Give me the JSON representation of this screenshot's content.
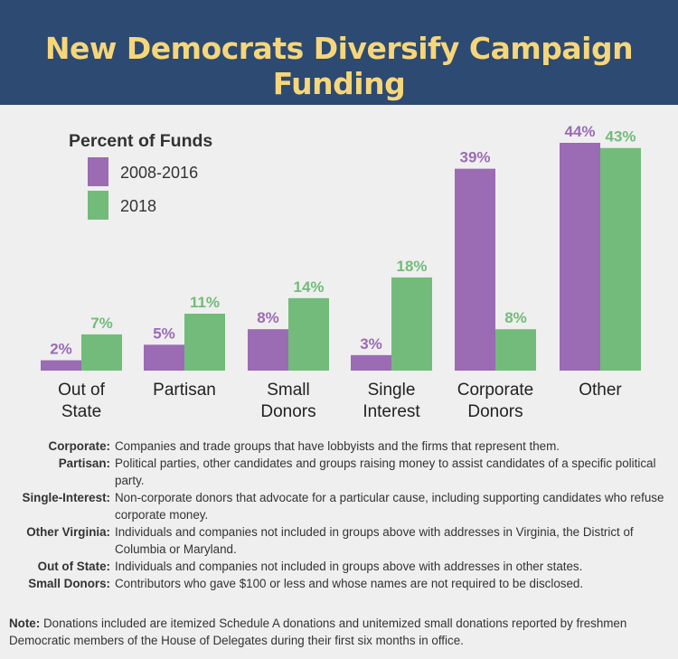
{
  "header": {
    "title": "New Democrats Diversify Campaign Funding"
  },
  "chart_data": {
    "type": "bar",
    "title": "New Democrats Diversify Campaign Funding",
    "legend_title": "Percent of Funds",
    "categories": [
      [
        "Out of",
        "State"
      ],
      [
        "Partisan"
      ],
      [
        "Small",
        "Donors"
      ],
      [
        "Single",
        "Interest"
      ],
      [
        "Corporate",
        "Donors"
      ],
      [
        "Other"
      ]
    ],
    "series": [
      {
        "name": "2008-2016",
        "color": "#9b6bb3",
        "values": [
          2,
          5,
          8,
          3,
          39,
          44
        ]
      },
      {
        "name": "2018",
        "color": "#73bb7b",
        "values": [
          7,
          11,
          14,
          18,
          8,
          43
        ]
      }
    ],
    "value_suffix": "%",
    "ylim": [
      0,
      44
    ]
  },
  "definitions": [
    {
      "term": "Corporate:",
      "text": "Companies and trade groups that have lobbyists and the firms that represent them."
    },
    {
      "term": "Partisan:",
      "text": "Political parties, other candidates and groups raising money to assist candidates of a specific political party."
    },
    {
      "term": "Single-Interest:",
      "text": "Non-corporate donors that advocate for a particular cause, including supporting candidates who refuse corporate money."
    },
    {
      "term": "Other Virginia:",
      "text": "Individuals and companies not included in groups above with addresses in Virginia, the District of Columbia or Maryland."
    },
    {
      "term": "Out of State:",
      "text": "Individuals and companies not included in groups above with addresses in other states."
    },
    {
      "term": "Small Donors:",
      "text": "Contributors who gave $100 or less and whose names are not required to be disclosed."
    }
  ],
  "note": {
    "label": "Note:",
    "text": "Donations included are itemized Schedule A donations and unitemized small donations reported by freshmen Democratic members of the House of Delegates during their first six months in office."
  }
}
